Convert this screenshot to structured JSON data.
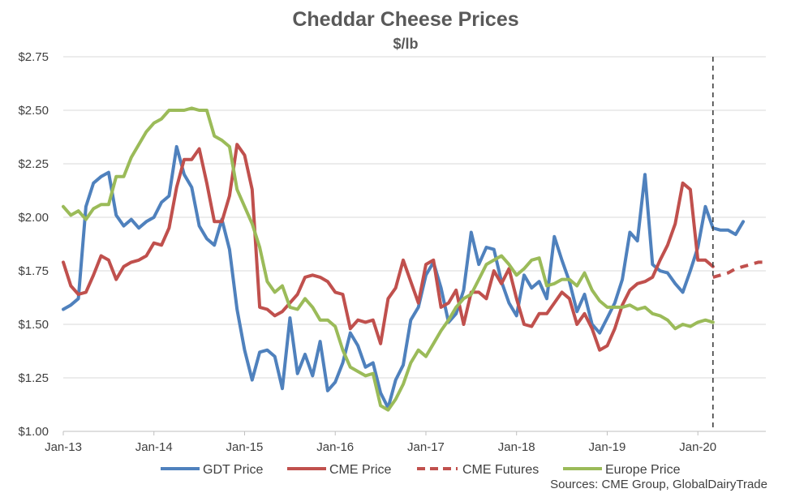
{
  "chart_data": {
    "type": "line",
    "title": "Cheddar Cheese Prices",
    "subtitle": "$/lb",
    "source": "Sources:  CME Group, GlobalDairyTrade",
    "x_ticks": [
      "Jan-13",
      "Jan-14",
      "Jan-15",
      "Jan-16",
      "Jan-17",
      "Jan-18",
      "Jan-19",
      "Jan-20"
    ],
    "y_ticks": [
      "$1.00",
      "$1.25",
      "$1.50",
      "$1.75",
      "$2.00",
      "$2.25",
      "$2.50",
      "$2.75"
    ],
    "xlim": [
      "2013-01",
      "2020-10"
    ],
    "ylim": [
      1.0,
      2.75
    ],
    "grid": "horizontal",
    "legend_position": "bottom",
    "marker_line": {
      "x": "2020-03",
      "style": "dashed",
      "color": "#404040"
    },
    "series": [
      {
        "name": "GDT Price",
        "color": "#4f81bd",
        "style": "solid",
        "points": [
          [
            "2013-01",
            1.57
          ],
          [
            "2013-02",
            1.59
          ],
          [
            "2013-03",
            1.62
          ],
          [
            "2013-04",
            2.05
          ],
          [
            "2013-05",
            2.16
          ],
          [
            "2013-06",
            2.19
          ],
          [
            "2013-07",
            2.21
          ],
          [
            "2013-08",
            2.01
          ],
          [
            "2013-09",
            1.96
          ],
          [
            "2013-10",
            1.99
          ],
          [
            "2013-11",
            1.95
          ],
          [
            "2013-12",
            1.98
          ],
          [
            "2014-01",
            2.0
          ],
          [
            "2014-02",
            2.07
          ],
          [
            "2014-03",
            2.1
          ],
          [
            "2014-04",
            2.33
          ],
          [
            "2014-05",
            2.2
          ],
          [
            "2014-06",
            2.14
          ],
          [
            "2014-07",
            1.96
          ],
          [
            "2014-08",
            1.9
          ],
          [
            "2014-09",
            1.87
          ],
          [
            "2014-10",
            1.99
          ],
          [
            "2014-11",
            1.85
          ],
          [
            "2014-12",
            1.57
          ],
          [
            "2015-01",
            1.38
          ],
          [
            "2015-02",
            1.24
          ],
          [
            "2015-03",
            1.37
          ],
          [
            "2015-04",
            1.38
          ],
          [
            "2015-05",
            1.35
          ],
          [
            "2015-06",
            1.2
          ],
          [
            "2015-07",
            1.53
          ],
          [
            "2015-08",
            1.27
          ],
          [
            "2015-09",
            1.36
          ],
          [
            "2015-10",
            1.26
          ],
          [
            "2015-11",
            1.42
          ],
          [
            "2015-12",
            1.19
          ],
          [
            "2016-01",
            1.23
          ],
          [
            "2016-02",
            1.32
          ],
          [
            "2016-03",
            1.46
          ],
          [
            "2016-04",
            1.4
          ],
          [
            "2016-05",
            1.3
          ],
          [
            "2016-06",
            1.32
          ],
          [
            "2016-07",
            1.18
          ],
          [
            "2016-08",
            1.11
          ],
          [
            "2016-09",
            1.24
          ],
          [
            "2016-10",
            1.31
          ],
          [
            "2016-11",
            1.52
          ],
          [
            "2016-12",
            1.58
          ],
          [
            "2017-01",
            1.73
          ],
          [
            "2017-02",
            1.79
          ],
          [
            "2017-03",
            1.67
          ],
          [
            "2017-04",
            1.51
          ],
          [
            "2017-05",
            1.55
          ],
          [
            "2017-06",
            1.66
          ],
          [
            "2017-07",
            1.93
          ],
          [
            "2017-08",
            1.78
          ],
          [
            "2017-09",
            1.86
          ],
          [
            "2017-10",
            1.85
          ],
          [
            "2017-11",
            1.7
          ],
          [
            "2017-12",
            1.6
          ],
          [
            "2018-01",
            1.54
          ],
          [
            "2018-02",
            1.73
          ],
          [
            "2018-03",
            1.67
          ],
          [
            "2018-04",
            1.7
          ],
          [
            "2018-05",
            1.62
          ],
          [
            "2018-06",
            1.91
          ],
          [
            "2018-07",
            1.8
          ],
          [
            "2018-08",
            1.7
          ],
          [
            "2018-09",
            1.56
          ],
          [
            "2018-10",
            1.64
          ],
          [
            "2018-11",
            1.5
          ],
          [
            "2018-12",
            1.46
          ],
          [
            "2019-01",
            1.53
          ],
          [
            "2019-02",
            1.6
          ],
          [
            "2019-03",
            1.71
          ],
          [
            "2019-04",
            1.93
          ],
          [
            "2019-05",
            1.89
          ],
          [
            "2019-06",
            2.2
          ],
          [
            "2019-07",
            1.78
          ],
          [
            "2019-08",
            1.75
          ],
          [
            "2019-09",
            1.74
          ],
          [
            "2019-10",
            1.69
          ],
          [
            "2019-11",
            1.65
          ],
          [
            "2019-12",
            1.75
          ],
          [
            "2020-01",
            1.86
          ],
          [
            "2020-02",
            2.05
          ],
          [
            "2020-03",
            1.95
          ],
          [
            "2020-04",
            1.94
          ],
          [
            "2020-05",
            1.94
          ],
          [
            "2020-06",
            1.92
          ],
          [
            "2020-07",
            1.98
          ]
        ]
      },
      {
        "name": "CME Price",
        "color": "#c0504d",
        "style": "solid",
        "points": [
          [
            "2013-01",
            1.79
          ],
          [
            "2013-02",
            1.68
          ],
          [
            "2013-03",
            1.64
          ],
          [
            "2013-04",
            1.65
          ],
          [
            "2013-05",
            1.73
          ],
          [
            "2013-06",
            1.82
          ],
          [
            "2013-07",
            1.8
          ],
          [
            "2013-08",
            1.71
          ],
          [
            "2013-09",
            1.77
          ],
          [
            "2013-10",
            1.79
          ],
          [
            "2013-11",
            1.8
          ],
          [
            "2013-12",
            1.82
          ],
          [
            "2014-01",
            1.88
          ],
          [
            "2014-02",
            1.87
          ],
          [
            "2014-03",
            1.95
          ],
          [
            "2014-04",
            2.14
          ],
          [
            "2014-05",
            2.27
          ],
          [
            "2014-06",
            2.27
          ],
          [
            "2014-07",
            2.32
          ],
          [
            "2014-08",
            2.16
          ],
          [
            "2014-09",
            1.98
          ],
          [
            "2014-10",
            1.98
          ],
          [
            "2014-11",
            2.1
          ],
          [
            "2014-12",
            2.34
          ],
          [
            "2015-01",
            2.29
          ],
          [
            "2015-02",
            2.13
          ],
          [
            "2015-03",
            1.58
          ],
          [
            "2015-04",
            1.57
          ],
          [
            "2015-05",
            1.54
          ],
          [
            "2015-06",
            1.56
          ],
          [
            "2015-07",
            1.6
          ],
          [
            "2015-08",
            1.64
          ],
          [
            "2015-09",
            1.72
          ],
          [
            "2015-10",
            1.73
          ],
          [
            "2015-11",
            1.72
          ],
          [
            "2015-12",
            1.7
          ],
          [
            "2016-01",
            1.65
          ],
          [
            "2016-02",
            1.64
          ],
          [
            "2016-03",
            1.48
          ],
          [
            "2016-04",
            1.52
          ],
          [
            "2016-05",
            1.51
          ],
          [
            "2016-06",
            1.52
          ],
          [
            "2016-07",
            1.41
          ],
          [
            "2016-08",
            1.62
          ],
          [
            "2016-09",
            1.67
          ],
          [
            "2016-10",
            1.8
          ],
          [
            "2016-11",
            1.7
          ],
          [
            "2016-12",
            1.6
          ],
          [
            "2017-01",
            1.78
          ],
          [
            "2017-02",
            1.8
          ],
          [
            "2017-03",
            1.58
          ],
          [
            "2017-04",
            1.6
          ],
          [
            "2017-05",
            1.66
          ],
          [
            "2017-06",
            1.5
          ],
          [
            "2017-07",
            1.65
          ],
          [
            "2017-08",
            1.65
          ],
          [
            "2017-09",
            1.62
          ],
          [
            "2017-10",
            1.75
          ],
          [
            "2017-11",
            1.69
          ],
          [
            "2017-12",
            1.76
          ],
          [
            "2018-01",
            1.62
          ],
          [
            "2018-02",
            1.5
          ],
          [
            "2018-03",
            1.49
          ],
          [
            "2018-04",
            1.55
          ],
          [
            "2018-05",
            1.55
          ],
          [
            "2018-06",
            1.6
          ],
          [
            "2018-07",
            1.65
          ],
          [
            "2018-08",
            1.62
          ],
          [
            "2018-09",
            1.5
          ],
          [
            "2018-10",
            1.55
          ],
          [
            "2018-11",
            1.48
          ],
          [
            "2018-12",
            1.38
          ],
          [
            "2019-01",
            1.4
          ],
          [
            "2019-02",
            1.48
          ],
          [
            "2019-03",
            1.59
          ],
          [
            "2019-04",
            1.66
          ],
          [
            "2019-05",
            1.69
          ],
          [
            "2019-06",
            1.7
          ],
          [
            "2019-07",
            1.72
          ],
          [
            "2019-08",
            1.8
          ],
          [
            "2019-09",
            1.87
          ],
          [
            "2019-10",
            1.97
          ],
          [
            "2019-11",
            2.16
          ],
          [
            "2019-12",
            2.13
          ],
          [
            "2020-01",
            1.8
          ],
          [
            "2020-02",
            1.8
          ],
          [
            "2020-03",
            1.77
          ]
        ]
      },
      {
        "name": "CME Futures",
        "color": "#c0504d",
        "style": "dashed",
        "points": [
          [
            "2020-03",
            1.72
          ],
          [
            "2020-04",
            1.73
          ],
          [
            "2020-05",
            1.74
          ],
          [
            "2020-06",
            1.76
          ],
          [
            "2020-07",
            1.77
          ],
          [
            "2020-08",
            1.78
          ],
          [
            "2020-09",
            1.79
          ],
          [
            "2020-10",
            1.79
          ]
        ]
      },
      {
        "name": "Europe Price",
        "color": "#9bbb59",
        "style": "solid",
        "points": [
          [
            "2013-01",
            2.05
          ],
          [
            "2013-02",
            2.01
          ],
          [
            "2013-03",
            2.03
          ],
          [
            "2013-04",
            1.99
          ],
          [
            "2013-05",
            2.04
          ],
          [
            "2013-06",
            2.06
          ],
          [
            "2013-07",
            2.06
          ],
          [
            "2013-08",
            2.19
          ],
          [
            "2013-09",
            2.19
          ],
          [
            "2013-10",
            2.28
          ],
          [
            "2013-11",
            2.34
          ],
          [
            "2013-12",
            2.4
          ],
          [
            "2014-01",
            2.44
          ],
          [
            "2014-02",
            2.46
          ],
          [
            "2014-03",
            2.5
          ],
          [
            "2014-04",
            2.5
          ],
          [
            "2014-05",
            2.5
          ],
          [
            "2014-06",
            2.51
          ],
          [
            "2014-07",
            2.5
          ],
          [
            "2014-08",
            2.5
          ],
          [
            "2014-09",
            2.38
          ],
          [
            "2014-10",
            2.36
          ],
          [
            "2014-11",
            2.33
          ],
          [
            "2014-12",
            2.13
          ],
          [
            "2015-01",
            2.05
          ],
          [
            "2015-02",
            1.97
          ],
          [
            "2015-03",
            1.86
          ],
          [
            "2015-04",
            1.7
          ],
          [
            "2015-05",
            1.65
          ],
          [
            "2015-06",
            1.68
          ],
          [
            "2015-07",
            1.58
          ],
          [
            "2015-08",
            1.57
          ],
          [
            "2015-09",
            1.62
          ],
          [
            "2015-10",
            1.58
          ],
          [
            "2015-11",
            1.52
          ],
          [
            "2015-12",
            1.52
          ],
          [
            "2016-01",
            1.49
          ],
          [
            "2016-02",
            1.38
          ],
          [
            "2016-03",
            1.3
          ],
          [
            "2016-04",
            1.28
          ],
          [
            "2016-05",
            1.26
          ],
          [
            "2016-06",
            1.27
          ],
          [
            "2016-07",
            1.12
          ],
          [
            "2016-08",
            1.1
          ],
          [
            "2016-09",
            1.15
          ],
          [
            "2016-10",
            1.22
          ],
          [
            "2016-11",
            1.32
          ],
          [
            "2016-12",
            1.38
          ],
          [
            "2017-01",
            1.35
          ],
          [
            "2017-02",
            1.41
          ],
          [
            "2017-03",
            1.47
          ],
          [
            "2017-04",
            1.52
          ],
          [
            "2017-05",
            1.58
          ],
          [
            "2017-06",
            1.62
          ],
          [
            "2017-07",
            1.64
          ],
          [
            "2017-08",
            1.71
          ],
          [
            "2017-09",
            1.78
          ],
          [
            "2017-10",
            1.8
          ],
          [
            "2017-11",
            1.82
          ],
          [
            "2017-12",
            1.78
          ],
          [
            "2018-01",
            1.73
          ],
          [
            "2018-02",
            1.76
          ],
          [
            "2018-03",
            1.8
          ],
          [
            "2018-04",
            1.81
          ],
          [
            "2018-05",
            1.68
          ],
          [
            "2018-06",
            1.69
          ],
          [
            "2018-07",
            1.71
          ],
          [
            "2018-08",
            1.71
          ],
          [
            "2018-09",
            1.68
          ],
          [
            "2018-10",
            1.74
          ],
          [
            "2018-11",
            1.66
          ],
          [
            "2018-12",
            1.61
          ],
          [
            "2019-01",
            1.58
          ],
          [
            "2019-02",
            1.58
          ],
          [
            "2019-03",
            1.58
          ],
          [
            "2019-04",
            1.59
          ],
          [
            "2019-05",
            1.57
          ],
          [
            "2019-06",
            1.58
          ],
          [
            "2019-07",
            1.55
          ],
          [
            "2019-08",
            1.54
          ],
          [
            "2019-09",
            1.52
          ],
          [
            "2019-10",
            1.48
          ],
          [
            "2019-11",
            1.5
          ],
          [
            "2019-12",
            1.49
          ],
          [
            "2020-01",
            1.51
          ],
          [
            "2020-02",
            1.52
          ],
          [
            "2020-03",
            1.51
          ]
        ]
      }
    ]
  }
}
